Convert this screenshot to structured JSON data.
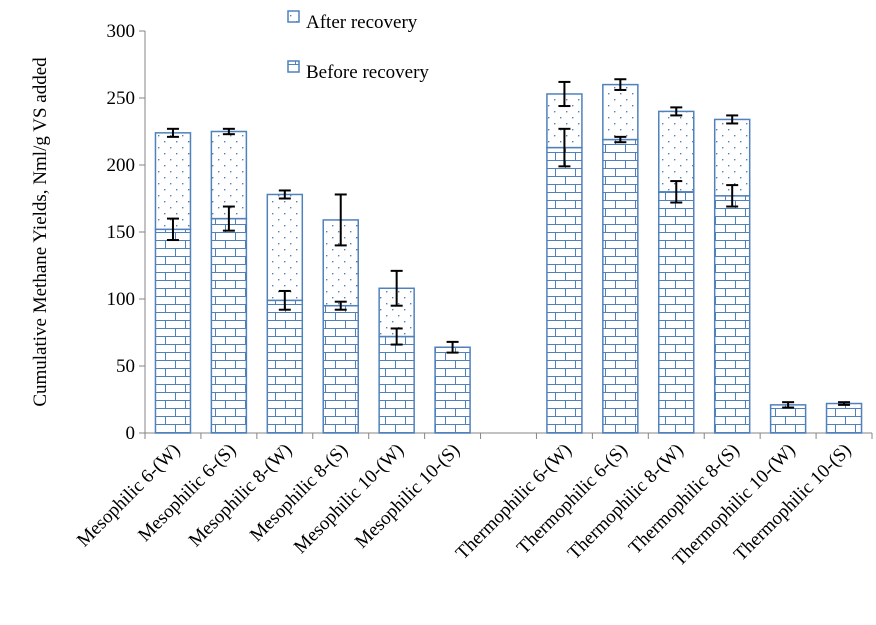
{
  "chart_data": {
    "type": "bar",
    "stacked": true,
    "ylabel": "Cumulative Methane Yields, Nml/g VS added",
    "xlabel": "",
    "ylim": [
      0,
      300
    ],
    "yticks": [
      0,
      50,
      100,
      150,
      200,
      250,
      300
    ],
    "grid": false,
    "legend_position": "top-center",
    "categories": [
      "Mesophilic 6-(W)",
      "Mesophilic 6-(S)",
      "Mesophilic 8-(W)",
      "Mesophilic 8-(S)",
      "Mesophilic 10-(W)",
      "Mesophilic 10-(S)",
      "Thermophilic 6-(W)",
      "Thermophilic 6-(S)",
      "Thermophilic 8-(W)",
      "Thermophilic 8-(S)",
      "Thermophilic 10-(W)",
      "Thermophilic 10-(S)"
    ],
    "series": [
      {
        "name": "Before recovery",
        "pattern": "brick",
        "color": "#4f81bd",
        "values": [
          152,
          160,
          99,
          95,
          72,
          64,
          213,
          219,
          180,
          177,
          21,
          22
        ],
        "errors": [
          8,
          9,
          7,
          3,
          6,
          4,
          14,
          2,
          8,
          8,
          2,
          1
        ]
      },
      {
        "name": "After recovery",
        "pattern": "dotted",
        "color": "#4f81bd",
        "totals": [
          224,
          225,
          178,
          159,
          108,
          64,
          253,
          260,
          240,
          234,
          21,
          22
        ],
        "errors": [
          3,
          2,
          3,
          19,
          13,
          0,
          9,
          4,
          3,
          3,
          0,
          0
        ]
      }
    ]
  }
}
